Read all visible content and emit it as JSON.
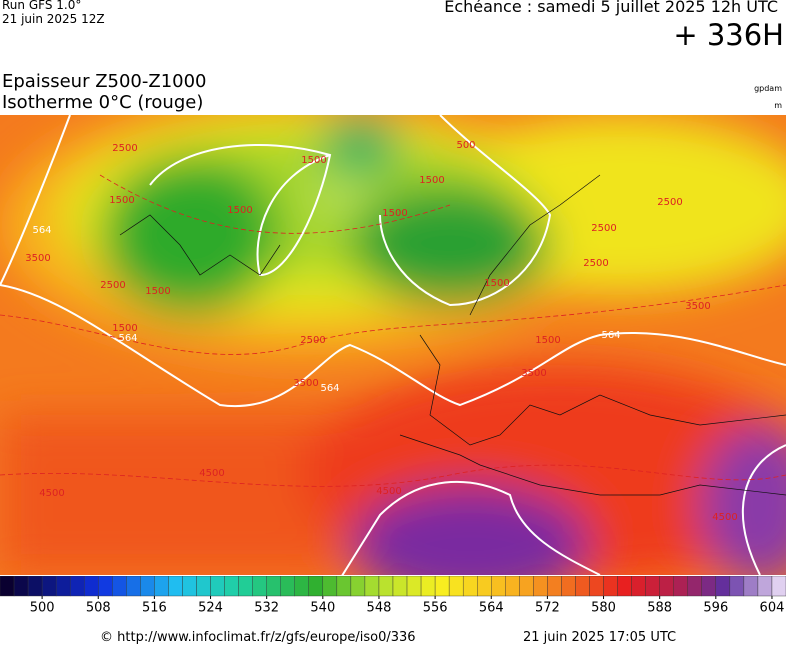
{
  "header": {
    "run": "Run GFS 1.0°",
    "run_date": "21 juin 2025 12Z",
    "valid": "Echéance : samedi 5 juillet 2025 12h UTC",
    "lead": "+ 336H"
  },
  "title": {
    "line1": "Epaisseur Z500-Z1000",
    "line2": "Isotherme 0°C (rouge)",
    "unit1": "gpdam",
    "unit2": "m"
  },
  "map": {
    "contour_labels": [
      564,
      2500,
      1500,
      3500,
      2500,
      1500,
      1500,
      564,
      2500,
      3500,
      564,
      4500,
      4500,
      4500,
      500,
      1500,
      1500,
      1500,
      1500,
      2500,
      2500,
      2500,
      3500,
      564,
      3500,
      1500,
      1500,
      4500
    ]
  },
  "colorbar": {
    "range": [
      494,
      606
    ],
    "ticks": [
      500,
      508,
      516,
      524,
      532,
      540,
      548,
      556,
      564,
      572,
      580,
      588,
      596,
      604
    ]
  },
  "footer": {
    "source": "© http://www.infoclimat.fr/z/gfs/europe/iso0/336",
    "generated": "21 juin 2025 17:05 UTC"
  }
}
